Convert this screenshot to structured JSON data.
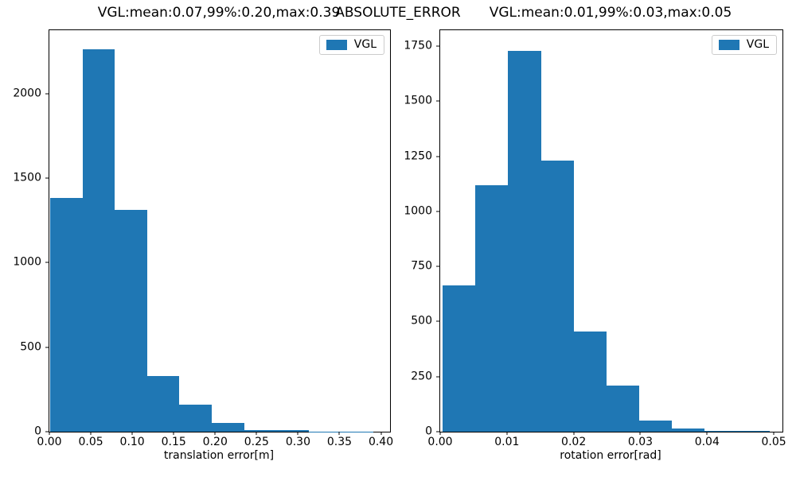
{
  "figure": {
    "suptitle": "ABSOLUTE_ERROR",
    "background": "#ffffff",
    "bar_color": "#1f77b4",
    "spine_color": "#000000",
    "legend_border_color": "#cccccc"
  },
  "chart_data": [
    {
      "type": "bar",
      "subtype": "histogram",
      "title": "VGL:mean:0.07,99%:0.20,max:0.39",
      "xlabel": "translation error[m]",
      "ylabel": "",
      "legend": [
        "VGL"
      ],
      "legend_position": "upper right",
      "grid": false,
      "xlim": [
        0,
        0.411
      ],
      "ylim": [
        0,
        2375
      ],
      "bin_start": 0.001,
      "bin_width": 0.039,
      "values": [
        1385,
        2260,
        1310,
        330,
        160,
        50,
        10,
        8,
        2,
        1
      ],
      "xticks": [
        0,
        0.05,
        0.1,
        0.15,
        0.2,
        0.25,
        0.3,
        0.35,
        0.4
      ],
      "xtick_labels": [
        "0.00",
        "0.05",
        "0.10",
        "0.15",
        "0.20",
        "0.25",
        "0.30",
        "0.35",
        "0.40"
      ],
      "yticks": [
        0,
        500,
        1000,
        1500,
        2000
      ],
      "ytick_labels": [
        "0",
        "500",
        "1000",
        "1500",
        "2000"
      ]
    },
    {
      "type": "bar",
      "subtype": "histogram",
      "title": "VGL:mean:0.01,99%:0.03,max:0.05",
      "xlabel": "rotation error[rad]",
      "ylabel": "",
      "legend": [
        "VGL"
      ],
      "legend_position": "upper right",
      "grid": false,
      "xlim": [
        0,
        0.0513
      ],
      "ylim": [
        0,
        1822
      ],
      "bin_start": 0.0004,
      "bin_width": 0.0049,
      "values": [
        665,
        1120,
        1730,
        1230,
        455,
        210,
        50,
        15,
        5,
        3
      ],
      "xticks": [
        0,
        0.01,
        0.02,
        0.03,
        0.04,
        0.05
      ],
      "xtick_labels": [
        "0.00",
        "0.01",
        "0.02",
        "0.03",
        "0.04",
        "0.05"
      ],
      "yticks": [
        0,
        250,
        500,
        750,
        1000,
        1250,
        1500,
        1750
      ],
      "ytick_labels": [
        "0",
        "250",
        "500",
        "750",
        "1000",
        "1250",
        "1500",
        "1750"
      ]
    }
  ]
}
